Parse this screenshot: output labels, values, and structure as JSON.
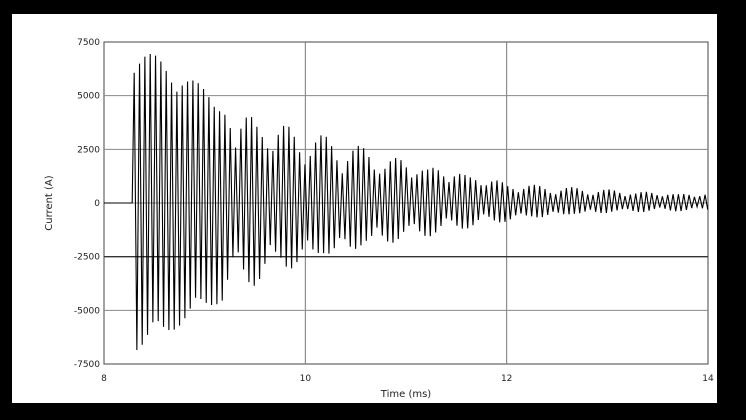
{
  "chart_data": {
    "type": "line",
    "title": "",
    "xlabel": "Time (ms)",
    "ylabel": "Current (A)",
    "xlim": [
      8,
      14
    ],
    "ylim": [
      -7500,
      7500
    ],
    "x_ticks": [
      8,
      10,
      12,
      14
    ],
    "y_ticks": [
      7500,
      5000,
      2500,
      0,
      -2500,
      -5000,
      -7500
    ],
    "x_tick_labels": [
      "8",
      "10",
      "12",
      "14"
    ],
    "y_tick_labels": [
      "7500",
      "5000",
      "2500",
      "0",
      "-2500",
      "-5000",
      "-7500"
    ],
    "grid": true,
    "series": [
      {
        "x": [
          8.0,
          8.28,
          8.3,
          8.4,
          8.6,
          8.8,
          9.0,
          9.3,
          9.6,
          10.0,
          10.4,
          10.8,
          11.2,
          11.6,
          12.0,
          12.4,
          12.8,
          13.2,
          13.6,
          14.0
        ],
        "upper": [
          0,
          0,
          7400,
          7200,
          6600,
          6000,
          5400,
          4700,
          4100,
          3400,
          2900,
          2300,
          1900,
          1500,
          1000,
          800,
          700,
          600,
          500,
          450
        ],
        "lower": [
          0,
          0,
          -6900,
          -6800,
          -6200,
          -5600,
          -5000,
          -4300,
          -3700,
          -3000,
          -2500,
          -2000,
          -1600,
          -1200,
          -900,
          -700,
          -550,
          -450,
          -400,
          -350
        ]
      }
    ],
    "line_color": "#000000"
  }
}
